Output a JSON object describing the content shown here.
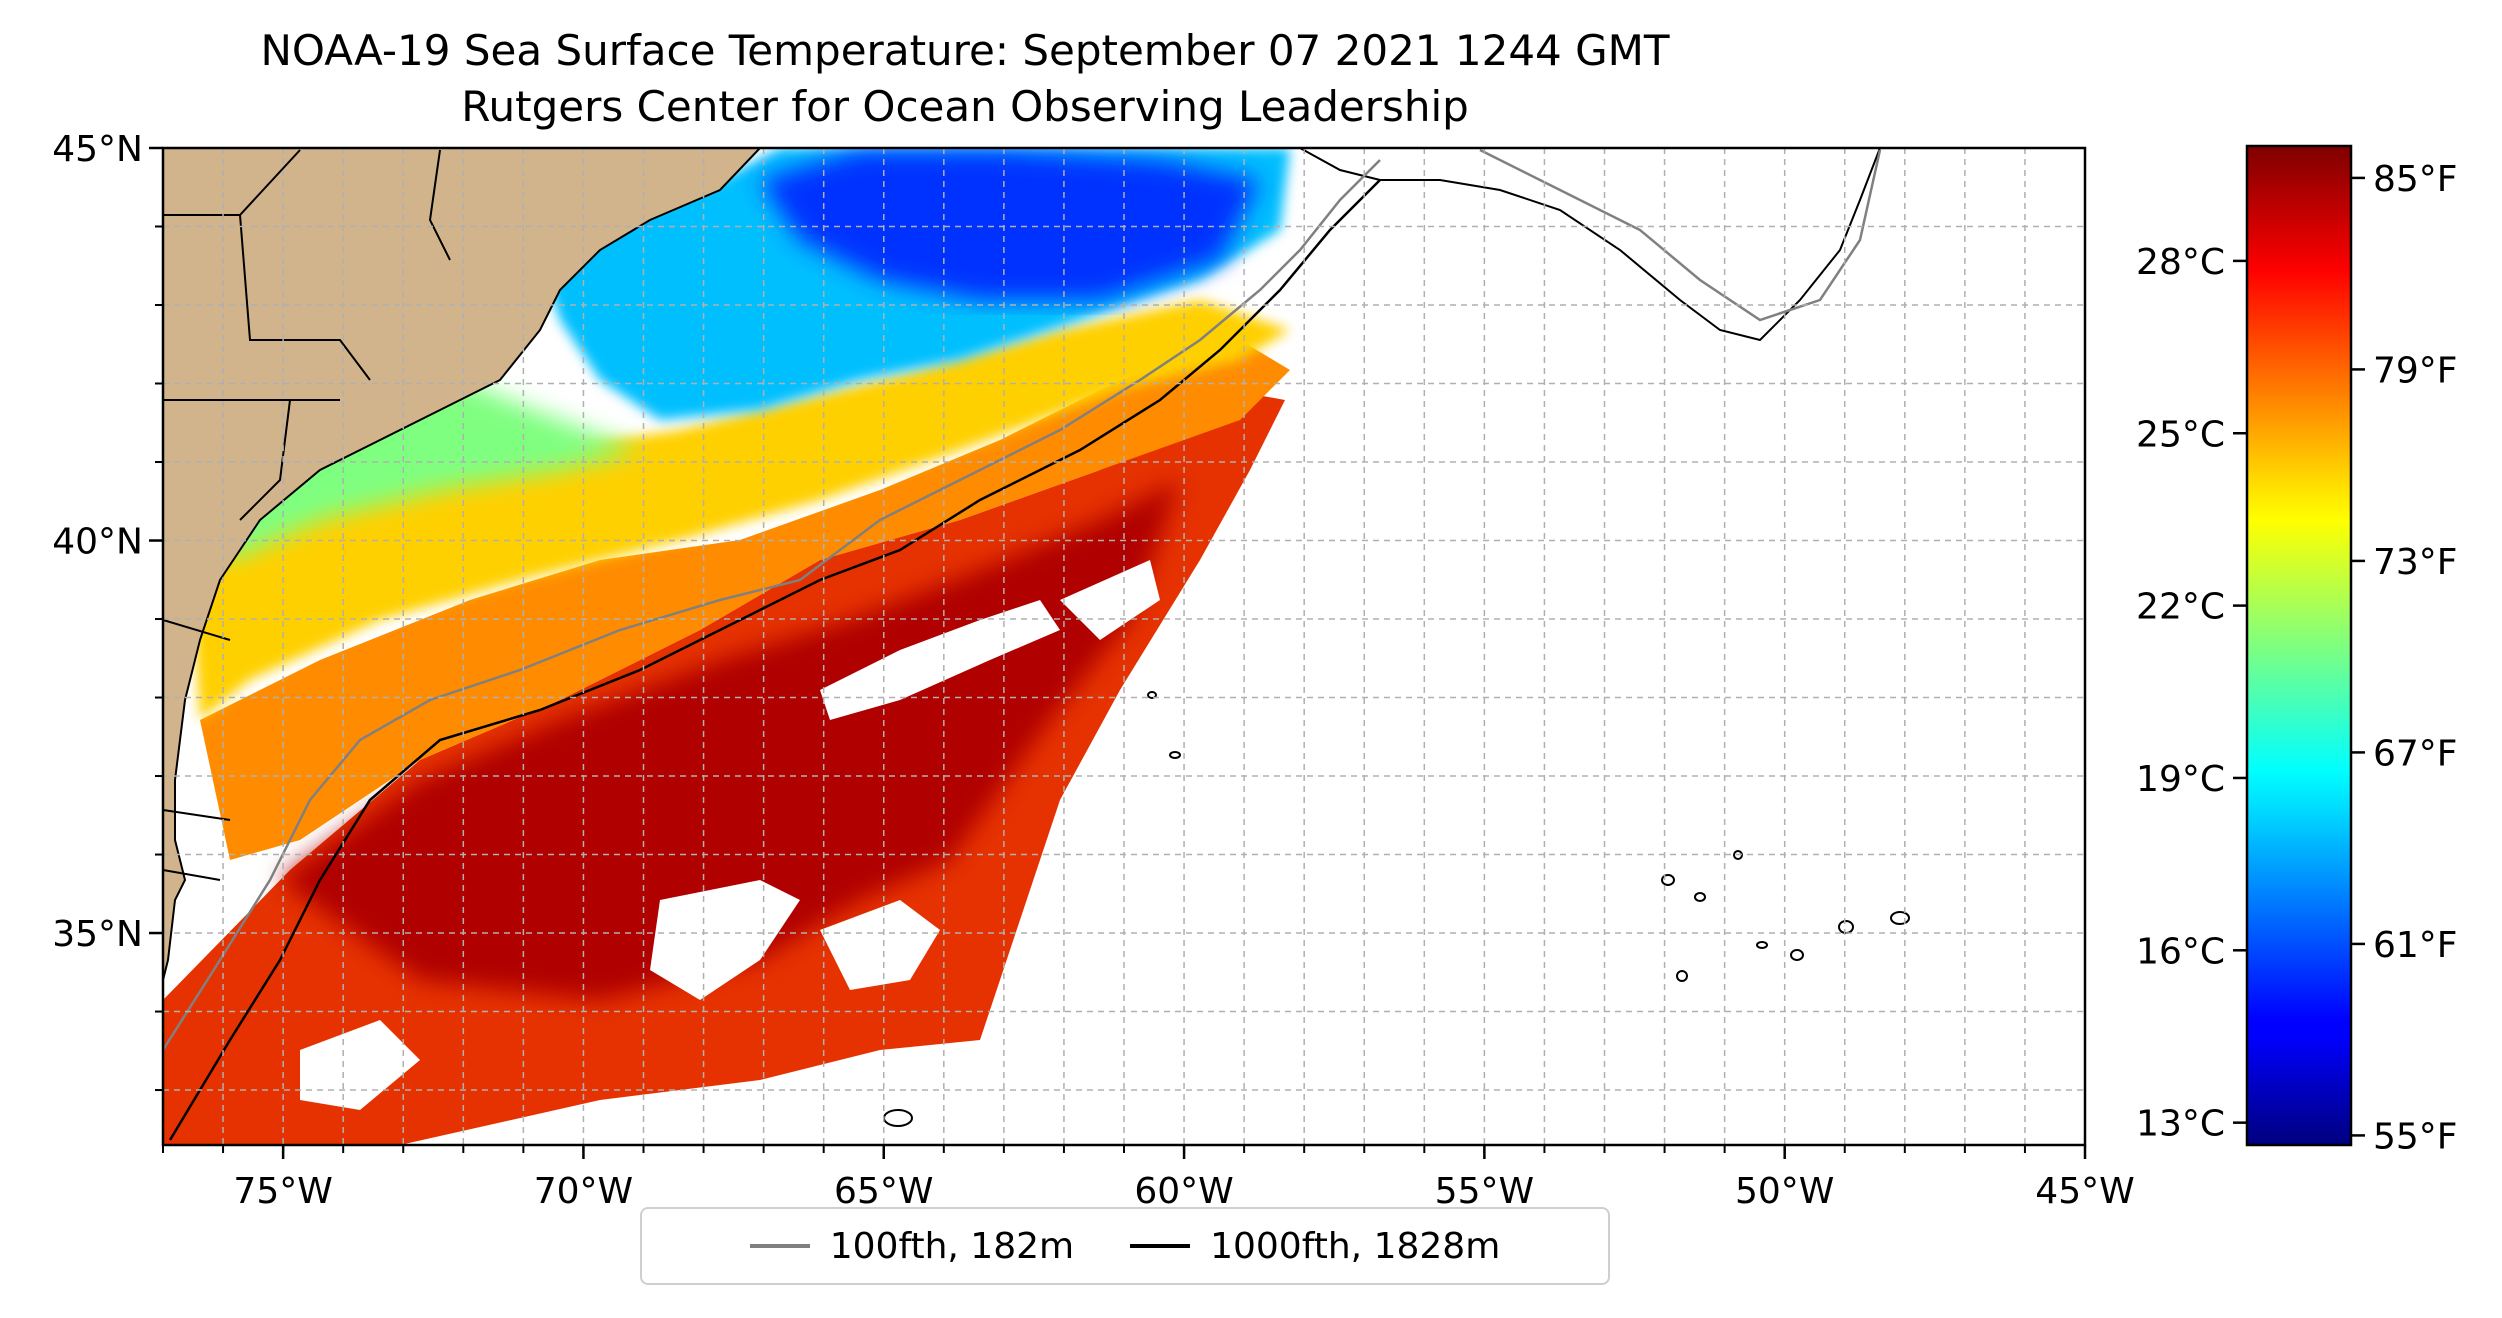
{
  "title": {
    "line1": "NOAA-19 Sea Surface Temperature: September 07 2021 1244 GMT",
    "line2": "Rutgers Center for Ocean Observing Leadership"
  },
  "map": {
    "extent": {
      "lon": [
        -77,
        -45
      ],
      "lat": [
        32.3,
        45
      ]
    },
    "lat_ticks": [
      {
        "value": 45,
        "label": "45°N"
      },
      {
        "value": 40,
        "label": "40°N"
      },
      {
        "value": 35,
        "label": "35°N"
      }
    ],
    "lon_ticks": [
      {
        "value": -75,
        "label": "75°W"
      },
      {
        "value": -70,
        "label": "70°W"
      },
      {
        "value": -65,
        "label": "65°W"
      },
      {
        "value": -60,
        "label": "60°W"
      },
      {
        "value": -55,
        "label": "55°W"
      },
      {
        "value": -50,
        "label": "50°W"
      },
      {
        "value": -45,
        "label": "45°W"
      }
    ],
    "grid_lines": true,
    "land_color": "#D2B48C",
    "ocean_color": "#FFFFFF"
  },
  "legend": {
    "entries": [
      {
        "label": "100fth, 182m",
        "color": "#808080"
      },
      {
        "label": "1000fth, 1828m",
        "color": "#000000"
      }
    ],
    "placement": "bottom-center"
  },
  "colorbar": {
    "colormap": "jet",
    "range_f": [
      54.7,
      86.0
    ],
    "celsius_ticks": [
      {
        "value_c": 28,
        "label": "28°C"
      },
      {
        "value_c": 25,
        "label": "25°C"
      },
      {
        "value_c": 22,
        "label": "22°C"
      },
      {
        "value_c": 19,
        "label": "19°C"
      },
      {
        "value_c": 16,
        "label": "16°C"
      },
      {
        "value_c": 13,
        "label": "13°C"
      }
    ],
    "fahrenheit_ticks": [
      {
        "value_f": 85,
        "label": "85°F"
      },
      {
        "value_f": 79,
        "label": "79°F"
      },
      {
        "value_f": 73,
        "label": "73°F"
      },
      {
        "value_f": 67,
        "label": "67°F"
      },
      {
        "value_f": 61,
        "label": "61°F"
      },
      {
        "value_f": 55,
        "label": "55°F"
      }
    ]
  }
}
